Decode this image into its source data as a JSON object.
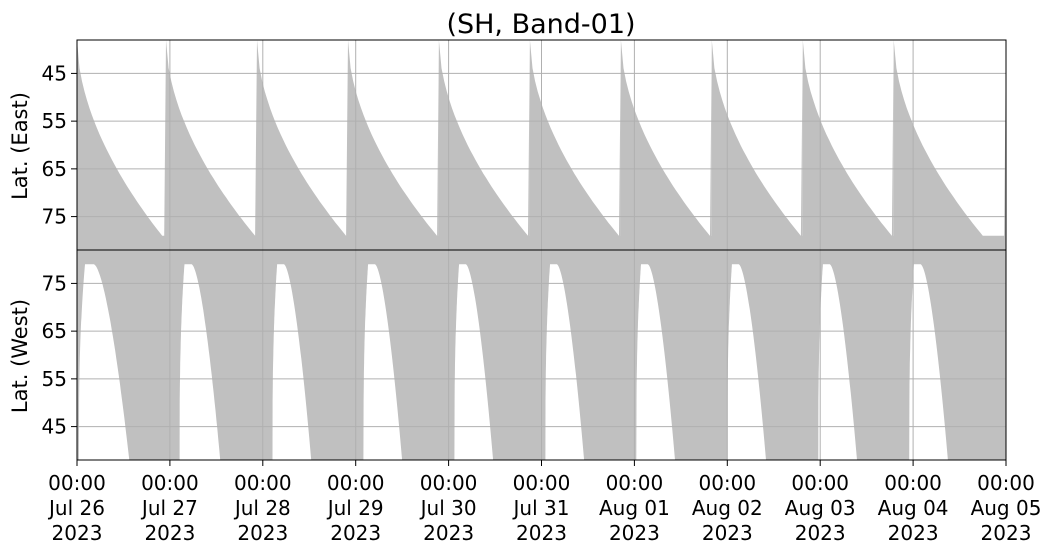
{
  "title": "(SH, Band-01)",
  "colors": {
    "fill": "#c0c0c0",
    "grid": "#b0b0b0",
    "axis": "#000000"
  },
  "chart_data": [
    {
      "panel": "east",
      "type": "area",
      "ylabel": "Lat. (East)",
      "ylim": [
        38,
        82
      ],
      "y_inverted": true,
      "y_ticks": [
        45,
        55,
        65,
        75
      ],
      "grid": true,
      "x_ticks": [
        {
          "l1": "00:00",
          "l2": "Jul 26",
          "l3": "2023"
        },
        {
          "l1": "00:00",
          "l2": "Jul 27",
          "l3": "2023"
        },
        {
          "l1": "00:00",
          "l2": "Jul 28",
          "l3": "2023"
        },
        {
          "l1": "00:00",
          "l2": "Jul 29",
          "l3": "2023"
        },
        {
          "l1": "00:00",
          "l2": "Jul 30",
          "l3": "2023"
        },
        {
          "l1": "00:00",
          "l2": "Jul 31",
          "l3": "2023"
        },
        {
          "l1": "00:00",
          "l2": "Aug 01",
          "l3": "2023"
        },
        {
          "l1": "00:00",
          "l2": "Aug 02",
          "l3": "2023"
        },
        {
          "l1": "00:00",
          "l2": "Aug 03",
          "l3": "2023"
        },
        {
          "l1": "00:00",
          "l2": "Aug 04",
          "l3": "2023"
        },
        {
          "l1": "00:00",
          "l2": "Aug 05",
          "l3": "2023"
        }
      ],
      "xlim": [
        "2023-07-26 00:00",
        "2023-08-05 00:00"
      ],
      "coverage_latitude_by_day": [
        {
          "day": "2023-07-26",
          "peak_time": "00:00",
          "min_lat": 38,
          "trough_time": "22:00",
          "max_lat": 79
        },
        {
          "day": "2023-07-27",
          "peak_time": "23:00",
          "min_lat": 38,
          "trough_time": "22:00",
          "max_lat": 79
        },
        {
          "day": "2023-07-28",
          "peak_time": "22:30",
          "min_lat": 38,
          "trough_time": "21:30",
          "max_lat": 79
        },
        {
          "day": "2023-07-29",
          "peak_time": "22:00",
          "min_lat": 38,
          "trough_time": "21:00",
          "max_lat": 79
        },
        {
          "day": "2023-07-30",
          "peak_time": "21:30",
          "min_lat": 38,
          "trough_time": "20:30",
          "max_lat": 79
        },
        {
          "day": "2023-07-31",
          "peak_time": "21:00",
          "min_lat": 38,
          "trough_time": "20:00",
          "max_lat": 79
        },
        {
          "day": "2023-08-01",
          "peak_time": "20:30",
          "min_lat": 38,
          "trough_time": "19:30",
          "max_lat": 79
        },
        {
          "day": "2023-08-02",
          "peak_time": "20:00",
          "min_lat": 38,
          "trough_time": "19:00",
          "max_lat": 79
        },
        {
          "day": "2023-08-03",
          "peak_time": "19:30",
          "min_lat": 38,
          "trough_time": "18:30",
          "max_lat": 79
        },
        {
          "day": "2023-08-04",
          "peak_time": "19:00",
          "min_lat": 38,
          "trough_time": "18:00",
          "max_lat": 79
        }
      ]
    },
    {
      "panel": "west",
      "type": "area",
      "ylabel": "Lat. (West)",
      "ylim": [
        38,
        82
      ],
      "y_inverted": false,
      "y_ticks": [
        75,
        65,
        55,
        45
      ],
      "grid": true,
      "xlim": [
        "2023-07-26 00:00",
        "2023-08-05 00:00"
      ],
      "coverage_latitude_by_day": [
        {
          "day": "2023-07-26",
          "gap_start": "00:30",
          "gap_end": "13:30",
          "min_lat": 38,
          "max_lat": 79
        },
        {
          "day": "2023-07-27",
          "gap_start": "02:30",
          "gap_end": "13:00",
          "min_lat": 38,
          "max_lat": 79
        },
        {
          "day": "2023-07-28",
          "gap_start": "02:30",
          "gap_end": "12:30",
          "min_lat": 38,
          "max_lat": 79
        },
        {
          "day": "2023-07-29",
          "gap_start": "02:00",
          "gap_end": "12:00",
          "min_lat": 38,
          "max_lat": 79
        },
        {
          "day": "2023-07-30",
          "gap_start": "01:30",
          "gap_end": "11:30",
          "min_lat": 38,
          "max_lat": 79
        },
        {
          "day": "2023-07-31",
          "gap_start": "01:00",
          "gap_end": "11:00",
          "min_lat": 38,
          "max_lat": 79
        },
        {
          "day": "2023-08-01",
          "gap_start": "00:30",
          "gap_end": "10:30",
          "min_lat": 38,
          "max_lat": 79
        },
        {
          "day": "2023-08-02",
          "gap_start": "00:00",
          "gap_end": "10:00",
          "min_lat": 38,
          "max_lat": 79
        },
        {
          "day": "2023-08-03",
          "gap_start": "23:30",
          "gap_end": "09:30",
          "min_lat": 38,
          "max_lat": 79
        },
        {
          "day": "2023-08-04",
          "gap_start": "23:00",
          "gap_end": "09:00",
          "min_lat": 38,
          "max_lat": 79
        }
      ]
    }
  ]
}
